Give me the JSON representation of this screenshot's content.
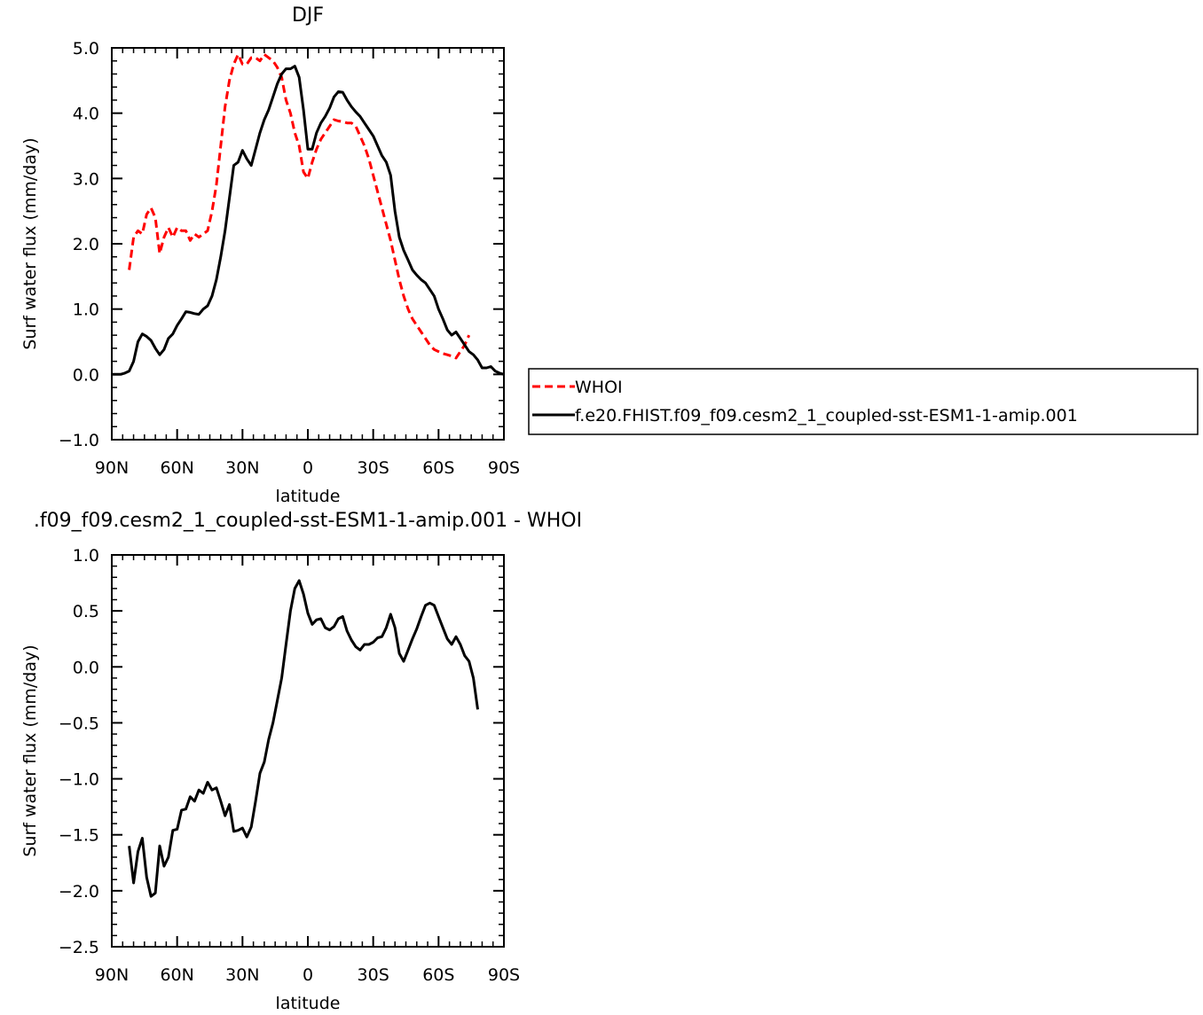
{
  "chart_data": [
    {
      "type": "line",
      "title": "DJF",
      "xlabel": "latitude",
      "ylabel": "Surf water flux (mm/day)",
      "xlim": [
        90,
        -90
      ],
      "ylim": [
        -1.0,
        5.0
      ],
      "xticks": [
        {
          "v": 90,
          "label": "90N"
        },
        {
          "v": 60,
          "label": "60N"
        },
        {
          "v": 30,
          "label": "30N"
        },
        {
          "v": 0,
          "label": "0"
        },
        {
          "v": -30,
          "label": "30S"
        },
        {
          "v": -60,
          "label": "60S"
        },
        {
          "v": -90,
          "label": "90S"
        }
      ],
      "yticks": [
        {
          "v": 5.0,
          "label": "5.0"
        },
        {
          "v": 4.0,
          "label": "4.0"
        },
        {
          "v": 3.0,
          "label": "3.0"
        },
        {
          "v": 2.0,
          "label": "2.0"
        },
        {
          "v": 1.0,
          "label": "1.0"
        },
        {
          "v": 0.0,
          "label": "0.0"
        },
        {
          "v": -1.0,
          "label": "-1.0"
        }
      ],
      "legend": {
        "placement": "right"
      },
      "series": [
        {
          "name": "WHOI",
          "color": "#ff0000",
          "style": "dashed",
          "points": [
            [
              82,
              1.6
            ],
            [
              80,
              2.1
            ],
            [
              78,
              2.2
            ],
            [
              76,
              2.15
            ],
            [
              74,
              2.45
            ],
            [
              72,
              2.55
            ],
            [
              70,
              2.4
            ],
            [
              68,
              1.85
            ],
            [
              66,
              2.1
            ],
            [
              64,
              2.25
            ],
            [
              62,
              2.1
            ],
            [
              60,
              2.25
            ],
            [
              58,
              2.2
            ],
            [
              56,
              2.2
            ],
            [
              54,
              2.05
            ],
            [
              52,
              2.15
            ],
            [
              50,
              2.1
            ],
            [
              48,
              2.15
            ],
            [
              46,
              2.2
            ],
            [
              44,
              2.5
            ],
            [
              42,
              2.9
            ],
            [
              40,
              3.5
            ],
            [
              38,
              4.1
            ],
            [
              36,
              4.5
            ],
            [
              34,
              4.75
            ],
            [
              32,
              4.9
            ],
            [
              30,
              4.75
            ],
            [
              28,
              4.75
            ],
            [
              26,
              4.85
            ],
            [
              24,
              4.85
            ],
            [
              22,
              4.8
            ],
            [
              20,
              4.9
            ],
            [
              18,
              4.85
            ],
            [
              16,
              4.8
            ],
            [
              14,
              4.7
            ],
            [
              12,
              4.55
            ],
            [
              10,
              4.2
            ],
            [
              8,
              4.0
            ],
            [
              6,
              3.7
            ],
            [
              4,
              3.5
            ],
            [
              2,
              3.1
            ],
            [
              0,
              3.0
            ],
            [
              -2,
              3.25
            ],
            [
              -4,
              3.45
            ],
            [
              -6,
              3.6
            ],
            [
              -8,
              3.7
            ],
            [
              -10,
              3.8
            ],
            [
              -12,
              3.9
            ],
            [
              -14,
              3.88
            ],
            [
              -16,
              3.87
            ],
            [
              -18,
              3.85
            ],
            [
              -20,
              3.85
            ],
            [
              -22,
              3.8
            ],
            [
              -24,
              3.65
            ],
            [
              -26,
              3.5
            ],
            [
              -28,
              3.3
            ],
            [
              -30,
              3.05
            ],
            [
              -32,
              2.8
            ],
            [
              -34,
              2.55
            ],
            [
              -36,
              2.3
            ],
            [
              -38,
              2.05
            ],
            [
              -40,
              1.75
            ],
            [
              -42,
              1.45
            ],
            [
              -44,
              1.2
            ],
            [
              -46,
              1.0
            ],
            [
              -48,
              0.85
            ],
            [
              -50,
              0.75
            ],
            [
              -52,
              0.65
            ],
            [
              -54,
              0.55
            ],
            [
              -56,
              0.45
            ],
            [
              -58,
              0.38
            ],
            [
              -60,
              0.35
            ],
            [
              -62,
              0.32
            ],
            [
              -64,
              0.3
            ],
            [
              -66,
              0.28
            ],
            [
              -68,
              0.25
            ],
            [
              -70,
              0.35
            ],
            [
              -72,
              0.45
            ],
            [
              -74,
              0.6
            ]
          ]
        },
        {
          "name": "f.e20.FHIST.f09_f09.cesm2_1_coupled-sst-ESM1-1-amip.001",
          "color": "#000000",
          "style": "solid",
          "points": [
            [
              90,
              0.0
            ],
            [
              88,
              0.0
            ],
            [
              86,
              0.0
            ],
            [
              84,
              0.02
            ],
            [
              82,
              0.05
            ],
            [
              80,
              0.2
            ],
            [
              78,
              0.5
            ],
            [
              76,
              0.62
            ],
            [
              74,
              0.58
            ],
            [
              72,
              0.52
            ],
            [
              70,
              0.4
            ],
            [
              68,
              0.3
            ],
            [
              66,
              0.38
            ],
            [
              64,
              0.55
            ],
            [
              62,
              0.62
            ],
            [
              60,
              0.75
            ],
            [
              58,
              0.85
            ],
            [
              56,
              0.96
            ],
            [
              54,
              0.95
            ],
            [
              52,
              0.93
            ],
            [
              50,
              0.92
            ],
            [
              48,
              1.0
            ],
            [
              46,
              1.05
            ],
            [
              44,
              1.2
            ],
            [
              42,
              1.45
            ],
            [
              40,
              1.8
            ],
            [
              38,
              2.2
            ],
            [
              36,
              2.7
            ],
            [
              34,
              3.2
            ],
            [
              32,
              3.25
            ],
            [
              30,
              3.43
            ],
            [
              28,
              3.3
            ],
            [
              26,
              3.2
            ],
            [
              24,
              3.45
            ],
            [
              22,
              3.7
            ],
            [
              20,
              3.9
            ],
            [
              18,
              4.05
            ],
            [
              16,
              4.25
            ],
            [
              14,
              4.45
            ],
            [
              12,
              4.6
            ],
            [
              10,
              4.68
            ],
            [
              8,
              4.68
            ],
            [
              6,
              4.72
            ],
            [
              4,
              4.55
            ],
            [
              2,
              4.05
            ],
            [
              0,
              3.45
            ],
            [
              -2,
              3.45
            ],
            [
              -4,
              3.7
            ],
            [
              -6,
              3.85
            ],
            [
              -8,
              3.95
            ],
            [
              -10,
              4.08
            ],
            [
              -12,
              4.25
            ],
            [
              -14,
              4.33
            ],
            [
              -16,
              4.32
            ],
            [
              -18,
              4.2
            ],
            [
              -20,
              4.1
            ],
            [
              -22,
              4.02
            ],
            [
              -24,
              3.95
            ],
            [
              -26,
              3.85
            ],
            [
              -28,
              3.75
            ],
            [
              -30,
              3.65
            ],
            [
              -32,
              3.5
            ],
            [
              -34,
              3.35
            ],
            [
              -36,
              3.25
            ],
            [
              -38,
              3.05
            ],
            [
              -40,
              2.5
            ],
            [
              -42,
              2.1
            ],
            [
              -44,
              1.9
            ],
            [
              -46,
              1.75
            ],
            [
              -48,
              1.6
            ],
            [
              -50,
              1.52
            ],
            [
              -52,
              1.45
            ],
            [
              -54,
              1.4
            ],
            [
              -56,
              1.3
            ],
            [
              -58,
              1.2
            ],
            [
              -60,
              1.0
            ],
            [
              -62,
              0.85
            ],
            [
              -64,
              0.68
            ],
            [
              -66,
              0.6
            ],
            [
              -68,
              0.65
            ],
            [
              -70,
              0.55
            ],
            [
              -72,
              0.45
            ],
            [
              -74,
              0.35
            ],
            [
              -76,
              0.3
            ],
            [
              -78,
              0.22
            ],
            [
              -80,
              0.1
            ],
            [
              -82,
              0.1
            ],
            [
              -84,
              0.12
            ],
            [
              -86,
              0.05
            ],
            [
              -88,
              0.02
            ],
            [
              -90,
              0.0
            ]
          ]
        }
      ]
    },
    {
      "type": "line",
      "title": ".f09_f09.cesm2_1_coupled-sst-ESM1-1-amip.001 - WHOI",
      "xlabel": "latitude",
      "ylabel": "Surf water flux (mm/day)",
      "xlim": [
        90,
        -90
      ],
      "ylim": [
        -2.5,
        1.0
      ],
      "xticks": [
        {
          "v": 90,
          "label": "90N"
        },
        {
          "v": 60,
          "label": "60N"
        },
        {
          "v": 30,
          "label": "30N"
        },
        {
          "v": 0,
          "label": "0"
        },
        {
          "v": -30,
          "label": "30S"
        },
        {
          "v": -60,
          "label": "60S"
        },
        {
          "v": -90,
          "label": "90S"
        }
      ],
      "yticks": [
        {
          "v": 1.0,
          "label": "1.0"
        },
        {
          "v": 0.5,
          "label": "0.5"
        },
        {
          "v": 0.0,
          "label": "0.0"
        },
        {
          "v": -0.5,
          "label": "-0.5"
        },
        {
          "v": -1.0,
          "label": "-1.0"
        },
        {
          "v": -1.5,
          "label": "-1.5"
        },
        {
          "v": -2.0,
          "label": "-2.0"
        },
        {
          "v": -2.5,
          "label": "-2.5"
        }
      ],
      "series": [
        {
          "color": "#000000",
          "style": "solid",
          "points": [
            [
              82,
              -1.6
            ],
            [
              80,
              -1.93
            ],
            [
              78,
              -1.65
            ],
            [
              76,
              -1.53
            ],
            [
              74,
              -1.88
            ],
            [
              72,
              -2.05
            ],
            [
              70,
              -2.02
            ],
            [
              68,
              -1.6
            ],
            [
              66,
              -1.78
            ],
            [
              64,
              -1.7
            ],
            [
              62,
              -1.46
            ],
            [
              60,
              -1.45
            ],
            [
              58,
              -1.28
            ],
            [
              56,
              -1.27
            ],
            [
              54,
              -1.16
            ],
            [
              52,
              -1.2
            ],
            [
              50,
              -1.1
            ],
            [
              48,
              -1.13
            ],
            [
              46,
              -1.03
            ],
            [
              44,
              -1.1
            ],
            [
              42,
              -1.08
            ],
            [
              40,
              -1.2
            ],
            [
              38,
              -1.33
            ],
            [
              36,
              -1.23
            ],
            [
              34,
              -1.47
            ],
            [
              32,
              -1.46
            ],
            [
              30,
              -1.44
            ],
            [
              28,
              -1.52
            ],
            [
              26,
              -1.43
            ],
            [
              24,
              -1.2
            ],
            [
              22,
              -0.95
            ],
            [
              20,
              -0.85
            ],
            [
              18,
              -0.65
            ],
            [
              16,
              -0.5
            ],
            [
              14,
              -0.3
            ],
            [
              12,
              -0.1
            ],
            [
              10,
              0.2
            ],
            [
              8,
              0.5
            ],
            [
              6,
              0.7
            ],
            [
              4,
              0.77
            ],
            [
              2,
              0.65
            ],
            [
              0,
              0.48
            ],
            [
              -2,
              0.38
            ],
            [
              -4,
              0.42
            ],
            [
              -6,
              0.43
            ],
            [
              -8,
              0.35
            ],
            [
              -10,
              0.33
            ],
            [
              -12,
              0.36
            ],
            [
              -14,
              0.43
            ],
            [
              -16,
              0.45
            ],
            [
              -18,
              0.32
            ],
            [
              -20,
              0.24
            ],
            [
              -22,
              0.18
            ],
            [
              -24,
              0.15
            ],
            [
              -26,
              0.2
            ],
            [
              -28,
              0.2
            ],
            [
              -30,
              0.22
            ],
            [
              -32,
              0.26
            ],
            [
              -34,
              0.27
            ],
            [
              -36,
              0.35
            ],
            [
              -38,
              0.47
            ],
            [
              -40,
              0.35
            ],
            [
              -42,
              0.12
            ],
            [
              -44,
              0.05
            ],
            [
              -46,
              0.15
            ],
            [
              -48,
              0.25
            ],
            [
              -50,
              0.34
            ],
            [
              -52,
              0.45
            ],
            [
              -54,
              0.55
            ],
            [
              -56,
              0.57
            ],
            [
              -58,
              0.55
            ],
            [
              -60,
              0.45
            ],
            [
              -62,
              0.35
            ],
            [
              -64,
              0.25
            ],
            [
              -66,
              0.2
            ],
            [
              -68,
              0.27
            ],
            [
              -70,
              0.2
            ],
            [
              -72,
              0.1
            ],
            [
              -74,
              0.05
            ],
            [
              -76,
              -0.1
            ],
            [
              -78,
              -0.38
            ]
          ]
        }
      ]
    }
  ]
}
